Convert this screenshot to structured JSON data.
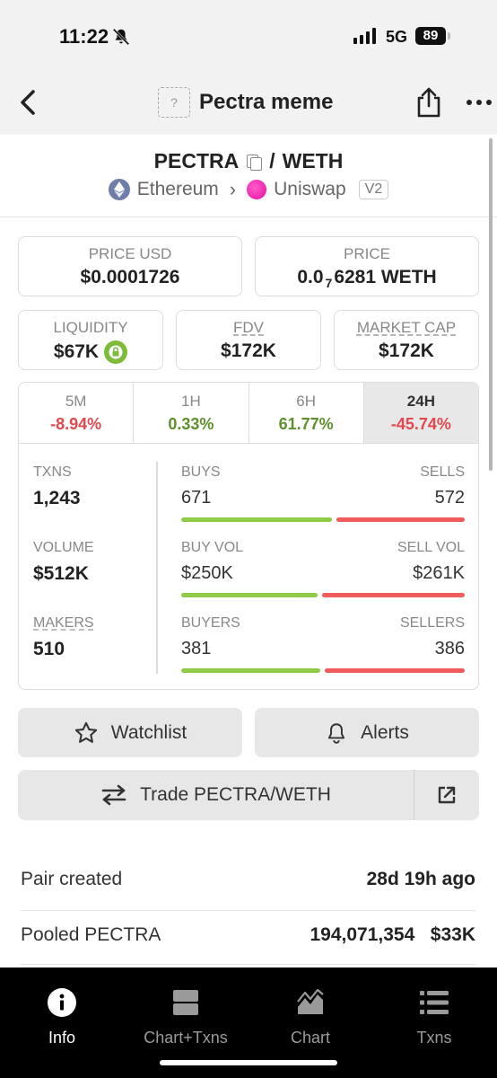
{
  "status_bar": {
    "time": "11:22",
    "network": "5G",
    "battery": "89"
  },
  "nav": {
    "title": "Pectra meme",
    "token_placeholder": "?"
  },
  "pair": {
    "base": "PECTRA",
    "separator": "/",
    "quote": "WETH",
    "chain": "Ethereum",
    "dex": "Uniswap",
    "version": "V2"
  },
  "price_usd": {
    "label": "PRICE USD",
    "value": "$0.0001726"
  },
  "price": {
    "label": "PRICE",
    "value_prefix": "0.0",
    "value_subscript": "7",
    "value_suffix": "6281 WETH"
  },
  "liquidity": {
    "label": "LIQUIDITY",
    "value": "$67K"
  },
  "fdv": {
    "label": "FDV",
    "value": "$172K"
  },
  "market_cap": {
    "label": "MARKET CAP",
    "value": "$172K"
  },
  "timeframes": [
    {
      "label": "5M",
      "change": "-8.94%",
      "direction": "negative"
    },
    {
      "label": "1H",
      "change": "0.33%",
      "direction": "positive"
    },
    {
      "label": "6H",
      "change": "61.77%",
      "direction": "positive"
    },
    {
      "label": "24H",
      "change": "-45.74%",
      "direction": "negative",
      "selected": true
    }
  ],
  "stats": {
    "txns": {
      "label": "TXNS",
      "value": "1,243"
    },
    "volume": {
      "label": "VOLUME",
      "value": "$512K"
    },
    "makers": {
      "label": "MAKERS",
      "value": "510"
    },
    "buys_sells": {
      "left_label": "BUYS",
      "right_label": "SELLS",
      "left_value": "671",
      "right_value": "572",
      "buy_fraction": 0.54
    },
    "vol_split": {
      "left_label": "BUY VOL",
      "right_label": "SELL VOL",
      "left_value": "$250K",
      "right_value": "$261K",
      "buy_fraction": 0.49
    },
    "buyers_sellers": {
      "left_label": "BUYERS",
      "right_label": "SELLERS",
      "left_value": "381",
      "right_value": "386",
      "buy_fraction": 0.497
    }
  },
  "actions": {
    "watchlist": "Watchlist",
    "alerts": "Alerts",
    "trade": "Trade PECTRA/WETH"
  },
  "info": {
    "pair_created": {
      "label": "Pair created",
      "value": "28d 19h ago"
    },
    "pooled": {
      "label": "Pooled PECTRA",
      "amount": "194,071,354",
      "usd": "$33K"
    }
  },
  "tabbar": [
    {
      "label": "Info",
      "icon": "info-icon",
      "active": true
    },
    {
      "label": "Chart+Txns",
      "icon": "split-layout-icon",
      "active": false
    },
    {
      "label": "Chart",
      "icon": "area-chart-icon",
      "active": false
    },
    {
      "label": "Txns",
      "icon": "list-icon",
      "active": false
    }
  ],
  "colors": {
    "positive": "#5e8f2b",
    "negative": "#e0484e",
    "bar_green": "#8fcb48",
    "bar_red": "#f05b5b"
  }
}
